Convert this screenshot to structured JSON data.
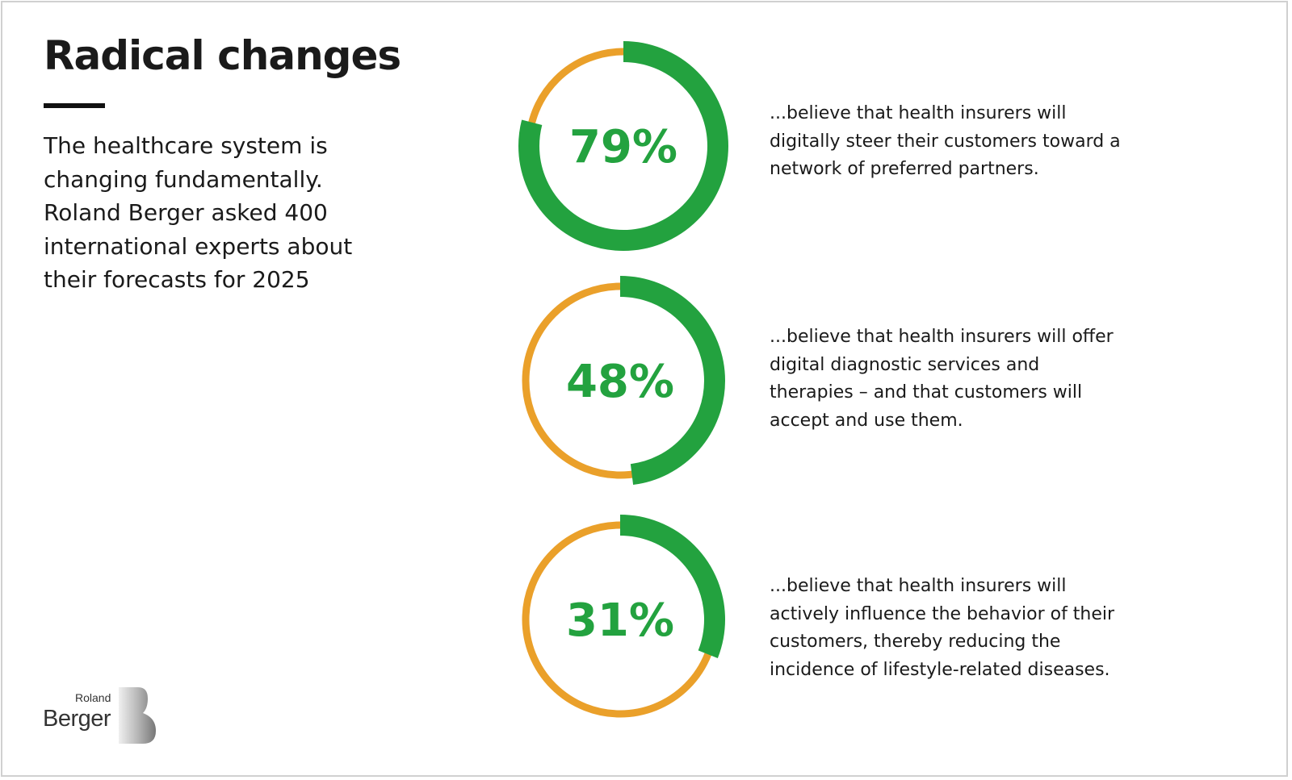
{
  "title": "Radical changes",
  "intro": "The healthcare system is changing fundamentally. Roland Berger asked 400 international experts about their forecasts for 2025",
  "colors": {
    "green": "#23a23f",
    "orange": "#eaa02a",
    "text": "#1a1a1a"
  },
  "chart_data": {
    "type": "pie",
    "variant": "donut-gauges",
    "series": [
      {
        "value": 79,
        "label": "79%",
        "description": "...believe that health insurers will digitally steer their customers toward a network of preferred partners."
      },
      {
        "value": 48,
        "label": "48%",
        "description": "...believe that health insurers will offer digital diagnostic services and therapies – and that customers will accept and use them."
      },
      {
        "value": 31,
        "label": "31%",
        "description": "...believe that health insurers will actively influence the behavior of their customers, thereby reducing the incidence of lifestyle-related diseases."
      }
    ]
  },
  "logo": {
    "line1": "Roland",
    "line2": "Berger"
  }
}
